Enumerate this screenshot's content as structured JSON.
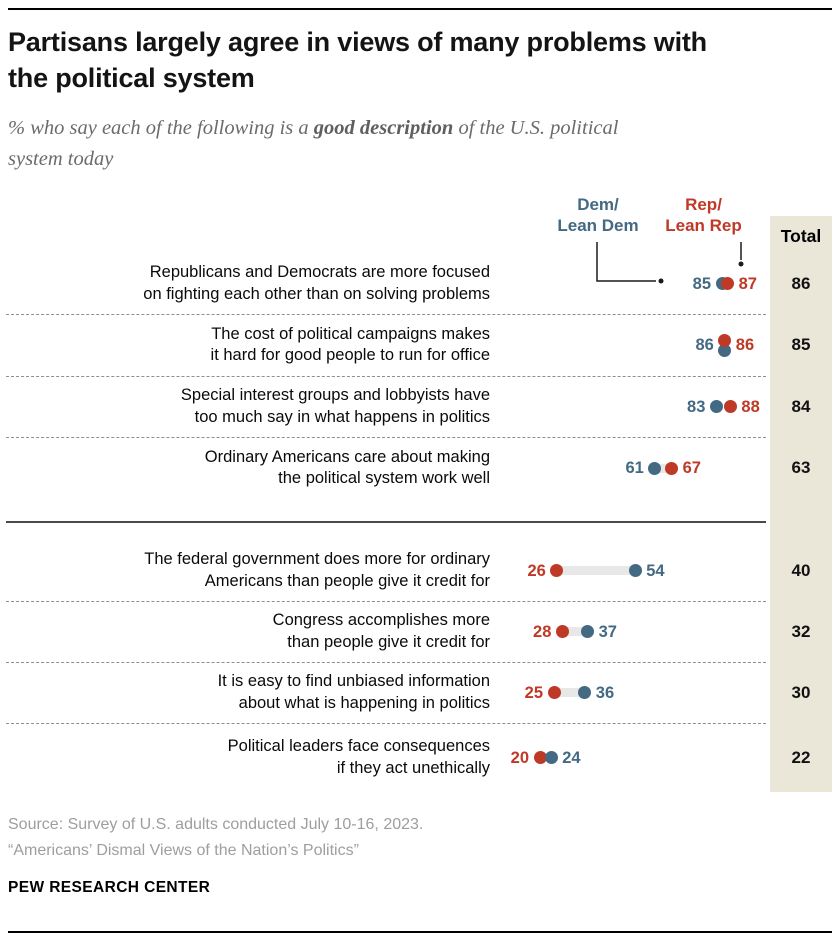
{
  "header": {
    "title_line1": "Partisans largely agree in views of many problems with",
    "title_line2": "the political system",
    "subtitle_prefix": "% who say each of the following is a ",
    "subtitle_bold": "good description",
    "subtitle_suffix": " of the U.S. political",
    "subtitle_line2": "system today"
  },
  "legend": {
    "dem_line1": "Dem/",
    "dem_line2": "Lean Dem",
    "rep_line1": "Rep/",
    "rep_line2": "Lean Rep",
    "total": "Total"
  },
  "colors": {
    "dem": "#436983",
    "rep": "#BF3927",
    "total_column_bg": "#EAE7D9"
  },
  "chart_data": {
    "type": "scatter",
    "subtype": "paired-dot-plot",
    "title": "Partisans largely agree in views of many problems with the political system",
    "subtitle": "% who say each of the following is a good description of the U.S. political system today",
    "series": [
      "Dem/Lean Dem",
      "Rep/Lean Rep",
      "Total"
    ],
    "value_axis_range": [
      0,
      100
    ],
    "legend_position": "top-right",
    "grid": false,
    "groups": [
      {
        "rows": [
          {
            "label_lines": [
              "Republicans and Democrats are more focused",
              "on fighting each other than on solving problems"
            ],
            "dem": 85,
            "rep": 87,
            "total": 86
          },
          {
            "label_lines": [
              "The cost of political campaigns makes",
              "it hard for good people to run for office"
            ],
            "dem": 86,
            "rep": 86,
            "total": 85
          },
          {
            "label_lines": [
              "Special interest groups and lobbyists have",
              "too much say in what happens in politics"
            ],
            "dem": 83,
            "rep": 88,
            "total": 84
          },
          {
            "label_lines": [
              "Ordinary Americans care about making",
              "the political system work well"
            ],
            "dem": 61,
            "rep": 67,
            "total": 63
          }
        ]
      },
      {
        "rows": [
          {
            "label_lines": [
              "The federal government does more for ordinary",
              "Americans than people give it credit for"
            ],
            "dem": 54,
            "rep": 26,
            "total": 40
          },
          {
            "label_lines": [
              "Congress accomplishes more",
              "than people give it credit for"
            ],
            "dem": 37,
            "rep": 28,
            "total": 32
          },
          {
            "label_lines": [
              "It is easy to find unbiased information",
              "about what is happening in politics"
            ],
            "dem": 36,
            "rep": 25,
            "total": 30
          },
          {
            "label_lines": [
              "Political leaders face consequences",
              "if they act unethically"
            ],
            "dem": 24,
            "rep": 20,
            "total": 22
          }
        ]
      }
    ]
  },
  "footer": {
    "source": "Source: Survey of U.S. adults conducted July 10-16, 2023.",
    "report": "“Americans’ Dismal Views of the Nation’s Politics”",
    "brand": "PEW RESEARCH CENTER"
  }
}
